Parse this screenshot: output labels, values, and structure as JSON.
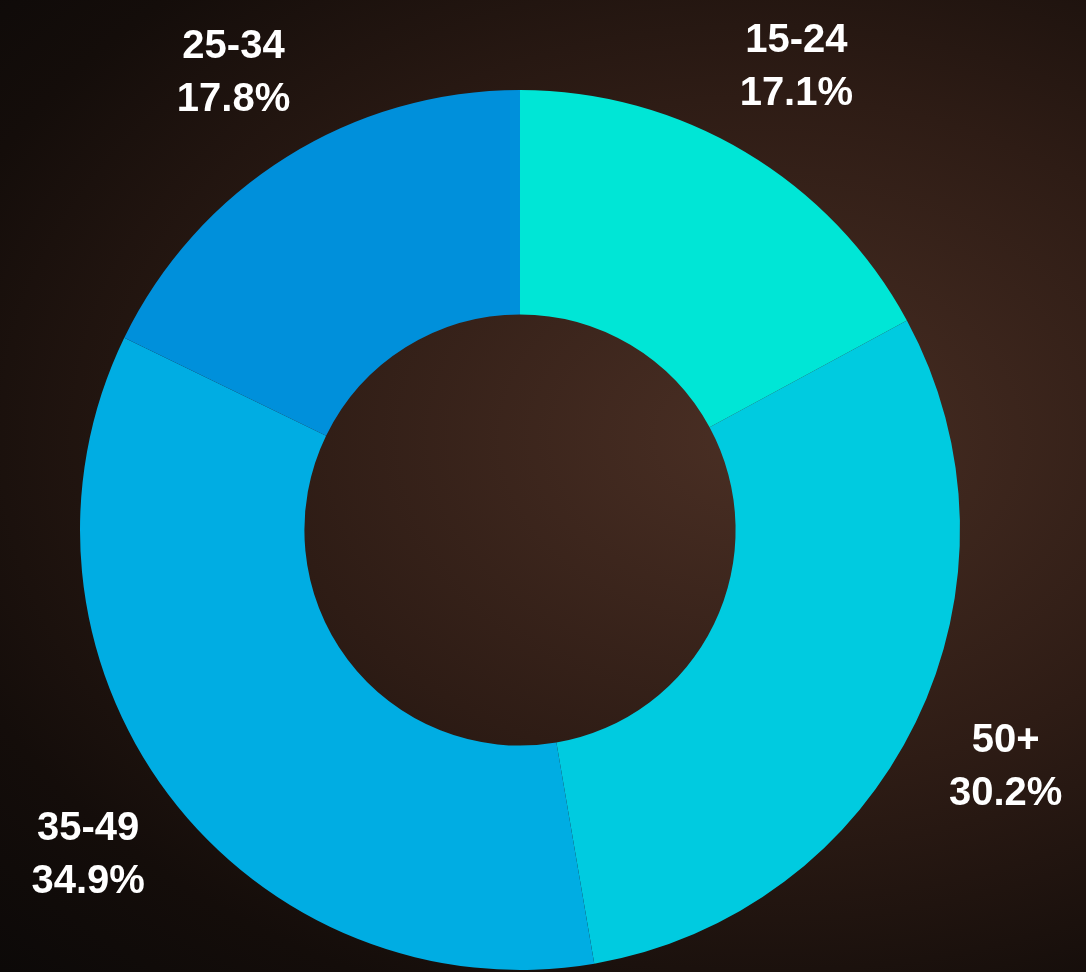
{
  "chart_data": {
    "type": "doughnut",
    "categories": [
      "15-24",
      "50+",
      "35-49",
      "25-34"
    ],
    "values": [
      17.1,
      30.2,
      34.9,
      17.8
    ],
    "value_labels": [
      "17.1%",
      "30.2%",
      "34.9%",
      "17.8%"
    ],
    "colors": [
      "#00e6d6",
      "#00cbe0",
      "#00ade3",
      "#0090db"
    ],
    "data_labels": true
  }
}
